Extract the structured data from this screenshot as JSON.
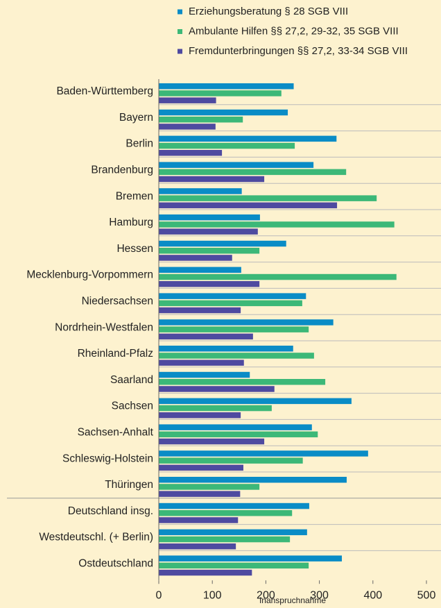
{
  "chart_data": {
    "type": "barh",
    "x_label": "Inanspruchnahme",
    "legend": "top",
    "categories": [
      "Baden-Württemberg",
      "Bayern",
      "Berlin",
      "Brandenburg",
      "Bremen",
      "Hamburg",
      "Hessen",
      "Mecklenburg-Vorpommern",
      "Niedersachsen",
      "Nordrhein-Westfalen",
      "Rheinland-Pfalz",
      "Saarland",
      "Sachsen",
      "Sachsen-Anhalt",
      "Schleswig-Holstein",
      "Thüringen",
      "Deutschland insg.",
      "Westdeutschl. (+ Berlin)",
      "Ostdeutschland"
    ],
    "series": [
      {
        "name": "Erziehungsberatung § 28 SGB VIII",
        "color": "#0a8cc6",
        "values": [
          252,
          241,
          332,
          289,
          155,
          189,
          238,
          154,
          275,
          326,
          251,
          170,
          360,
          286,
          391,
          351,
          281,
          277,
          342
        ]
      },
      {
        "name": "Ambulante Hilfen §§ 27,2, 29-32, 35 SGB VIII",
        "color": "#3cb878",
        "values": [
          229,
          157,
          254,
          350,
          407,
          440,
          188,
          444,
          268,
          280,
          290,
          311,
          211,
          297,
          269,
          188,
          249,
          245,
          280
        ]
      },
      {
        "name": "Fremdunterbringungen §§ 27,2, 33-34 SGB VIII",
        "color": "#4e4aa0",
        "values": [
          107,
          106,
          118,
          197,
          333,
          185,
          137,
          188,
          153,
          176,
          159,
          216,
          153,
          197,
          158,
          152,
          148,
          144,
          174
        ]
      }
    ],
    "xlim": [
      0,
      500
    ],
    "xticks": [
      0,
      100,
      200,
      300,
      400,
      500
    ]
  }
}
